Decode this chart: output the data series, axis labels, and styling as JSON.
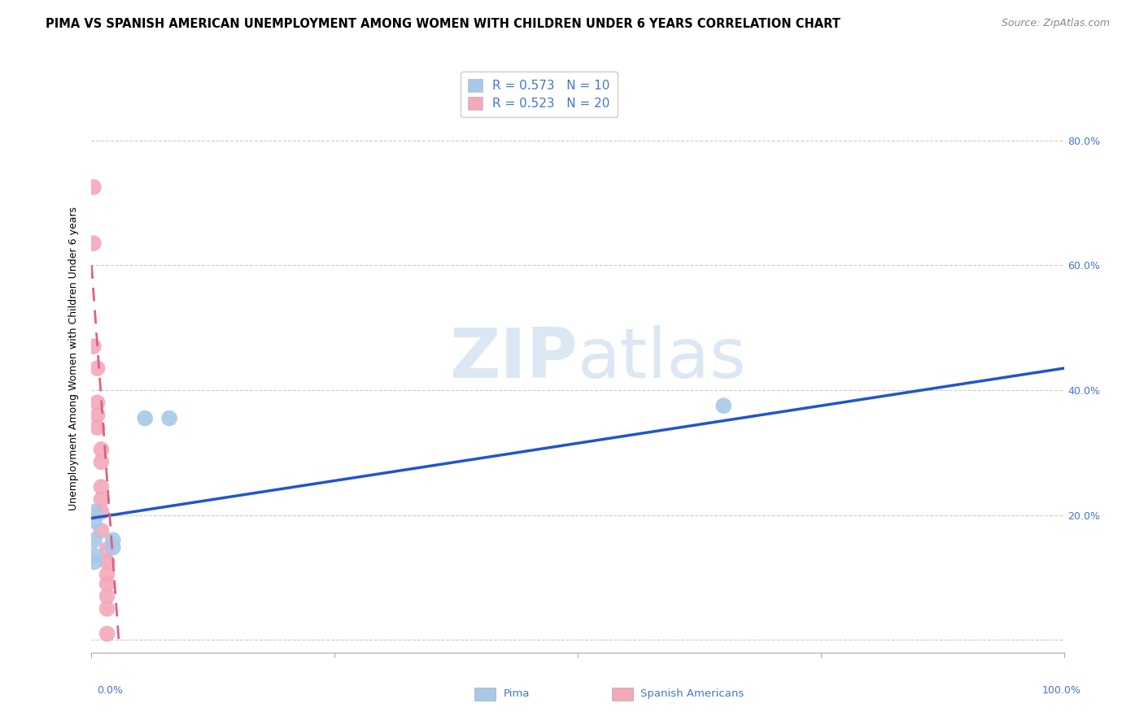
{
  "title": "PIMA VS SPANISH AMERICAN UNEMPLOYMENT AMONG WOMEN WITH CHILDREN UNDER 6 YEARS CORRELATION CHART",
  "source": "Source: ZipAtlas.com",
  "ylabel": "Unemployment Among Women with Children Under 6 years",
  "xlim": [
    0.0,
    1.0
  ],
  "ylim": [
    -0.02,
    0.92
  ],
  "yticks": [
    0.0,
    0.2,
    0.4,
    0.6,
    0.8
  ],
  "ytick_labels": [
    "",
    "20.0%",
    "40.0%",
    "60.0%",
    "80.0%"
  ],
  "watermark_zip": "ZIP",
  "watermark_atlas": "atlas",
  "blue_color": "#a8c8e8",
  "pink_color": "#f4a8b8",
  "blue_line_color": "#2255cc",
  "pink_line_color": "#e06080",
  "axis_color": "#4477cc",
  "legend_r1": "R = 0.573",
  "legend_n1": "N = 10",
  "legend_r2": "R = 0.523",
  "legend_n2": "N = 20",
  "pima_points": [
    [
      0.003,
      0.205
    ],
    [
      0.003,
      0.19
    ],
    [
      0.003,
      0.16
    ],
    [
      0.003,
      0.135
    ],
    [
      0.003,
      0.125
    ],
    [
      0.022,
      0.16
    ],
    [
      0.022,
      0.148
    ],
    [
      0.08,
      0.355
    ],
    [
      0.055,
      0.355
    ],
    [
      0.65,
      0.375
    ]
  ],
  "spanish_points": [
    [
      0.002,
      0.725
    ],
    [
      0.002,
      0.635
    ],
    [
      0.002,
      0.47
    ],
    [
      0.006,
      0.435
    ],
    [
      0.006,
      0.38
    ],
    [
      0.006,
      0.36
    ],
    [
      0.006,
      0.34
    ],
    [
      0.01,
      0.305
    ],
    [
      0.01,
      0.285
    ],
    [
      0.01,
      0.245
    ],
    [
      0.01,
      0.225
    ],
    [
      0.01,
      0.205
    ],
    [
      0.01,
      0.175
    ],
    [
      0.016,
      0.145
    ],
    [
      0.016,
      0.125
    ],
    [
      0.016,
      0.105
    ],
    [
      0.016,
      0.09
    ],
    [
      0.016,
      0.07
    ],
    [
      0.016,
      0.05
    ],
    [
      0.016,
      0.01
    ]
  ],
  "blue_trendline_x": [
    0.0,
    1.0
  ],
  "blue_trendline_y": [
    0.195,
    0.435
  ],
  "pink_trendline_x": [
    0.0,
    0.028
  ],
  "pink_trendline_y": [
    0.6,
    0.0
  ],
  "title_fontsize": 10.5,
  "source_fontsize": 9,
  "axis_label_fontsize": 9,
  "tick_fontsize": 9,
  "legend_fontsize": 11
}
